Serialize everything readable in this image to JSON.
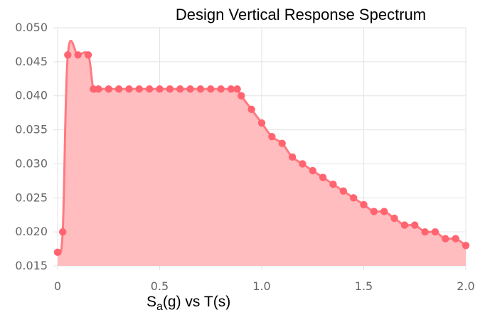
{
  "colors": {
    "series_line": "#ff7a80",
    "series_fill": "#ffbdc0",
    "series_point": "#ff6470",
    "grid": "#e3e3e3",
    "tick_text": "#666666",
    "title_text": "#000000"
  },
  "chart_data": {
    "type": "area",
    "title": "Design Vertical Response Spectrum",
    "xlabel": {
      "main": "S",
      "sub": "a",
      "rest": "(g) vs T(s)"
    },
    "ylabel": "",
    "xlim": [
      0,
      2.0
    ],
    "ylim": [
      0.015,
      0.05
    ],
    "x_ticks": [
      0,
      0.5,
      1.0,
      1.5,
      2.0
    ],
    "x_tick_labels": [
      "0",
      "0.5",
      "1.0",
      "1.5",
      "2.0"
    ],
    "y_ticks": [
      0.015,
      0.02,
      0.025,
      0.03,
      0.035,
      0.04,
      0.045,
      0.05
    ],
    "y_tick_labels": [
      "0.015",
      "0.020",
      "0.025",
      "0.030",
      "0.035",
      "0.040",
      "0.045",
      "0.050"
    ],
    "grid": true,
    "legend": "none",
    "series": [
      {
        "points": [
          [
            0.0,
            0.017
          ],
          [
            0.025,
            0.02
          ],
          [
            0.05,
            0.046
          ],
          [
            0.1,
            0.046
          ],
          [
            0.15,
            0.046
          ],
          [
            0.175,
            0.041
          ],
          [
            0.2,
            0.041
          ],
          [
            0.25,
            0.041
          ],
          [
            0.3,
            0.041
          ],
          [
            0.35,
            0.041
          ],
          [
            0.4,
            0.041
          ],
          [
            0.45,
            0.041
          ],
          [
            0.5,
            0.041
          ],
          [
            0.55,
            0.041
          ],
          [
            0.6,
            0.041
          ],
          [
            0.65,
            0.041
          ],
          [
            0.7,
            0.041
          ],
          [
            0.75,
            0.041
          ],
          [
            0.8,
            0.041
          ],
          [
            0.85,
            0.041
          ],
          [
            0.88,
            0.041
          ],
          [
            0.9,
            0.04
          ],
          [
            0.95,
            0.038
          ],
          [
            1.0,
            0.036
          ],
          [
            1.05,
            0.034
          ],
          [
            1.1,
            0.033
          ],
          [
            1.15,
            0.031
          ],
          [
            1.2,
            0.03
          ],
          [
            1.25,
            0.029
          ],
          [
            1.3,
            0.028
          ],
          [
            1.35,
            0.027
          ],
          [
            1.4,
            0.026
          ],
          [
            1.45,
            0.025
          ],
          [
            1.5,
            0.024
          ],
          [
            1.55,
            0.023
          ],
          [
            1.6,
            0.023
          ],
          [
            1.65,
            0.022
          ],
          [
            1.7,
            0.021
          ],
          [
            1.75,
            0.021
          ],
          [
            1.8,
            0.02
          ],
          [
            1.85,
            0.02
          ],
          [
            1.9,
            0.019
          ],
          [
            1.95,
            0.019
          ],
          [
            2.0,
            0.018
          ]
        ]
      }
    ]
  }
}
